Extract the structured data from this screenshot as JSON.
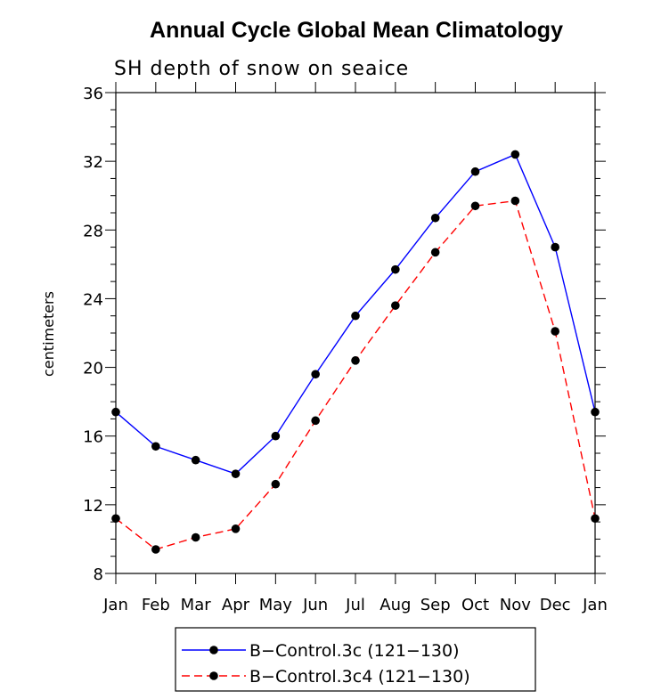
{
  "chart_data": {
    "type": "line",
    "title": "Annual Cycle Global Mean Climatology",
    "subtitle": "SH depth of snow on seaice",
    "xlabel": "",
    "ylabel": "centimeters",
    "categories": [
      "Jan",
      "Feb",
      "Mar",
      "Apr",
      "May",
      "Jun",
      "Jul",
      "Aug",
      "Sep",
      "Oct",
      "Nov",
      "Dec",
      "Jan"
    ],
    "ylim": [
      8,
      36
    ],
    "yticks": [
      8,
      12,
      16,
      20,
      24,
      28,
      32,
      36
    ],
    "yticks_minor_step": 1,
    "legend_position": "bottom",
    "series": [
      {
        "name": "B−Control.3c (121−130)",
        "color": "#0000ff",
        "dash": "solid",
        "marker": "circle",
        "values": [
          17.4,
          15.4,
          14.6,
          13.8,
          16.0,
          19.6,
          23.0,
          25.7,
          28.7,
          31.4,
          32.4,
          27.0,
          17.4
        ]
      },
      {
        "name": "B−Control.3c4 (121−130)",
        "color": "#ff0000",
        "dash": "dashed",
        "marker": "circle",
        "values": [
          11.2,
          9.4,
          10.1,
          10.6,
          13.2,
          16.9,
          20.4,
          23.6,
          26.7,
          29.4,
          29.7,
          22.1,
          11.2
        ]
      }
    ]
  }
}
